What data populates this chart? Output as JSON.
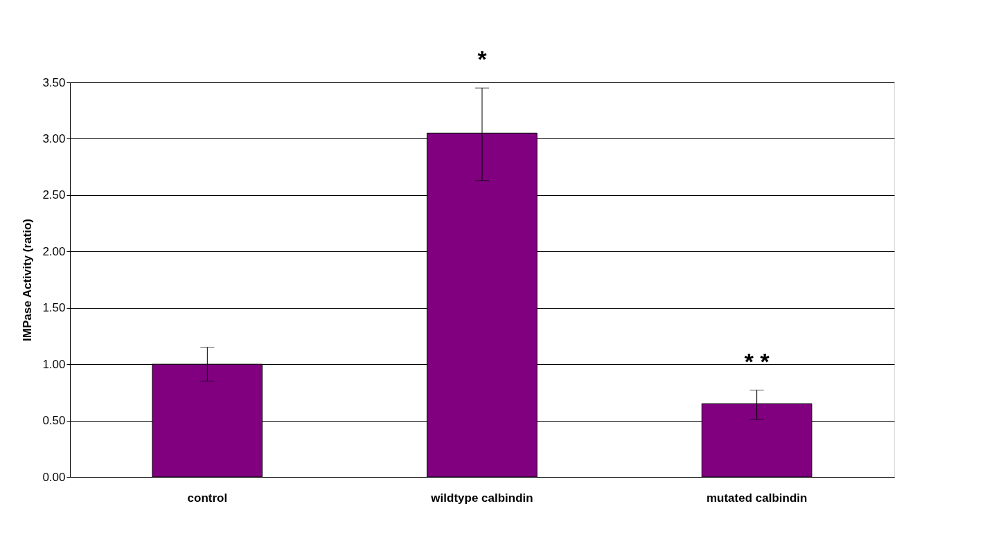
{
  "chart_data": {
    "type": "bar",
    "ylabel": "IMPase Activity (ratio)",
    "categories": [
      "control",
      "wildtype calbindin",
      "mutated calbindin"
    ],
    "values": [
      1.0,
      3.05,
      0.65
    ],
    "errors": [
      [
        0.85,
        1.15
      ],
      [
        2.63,
        3.45
      ],
      [
        0.51,
        0.77
      ]
    ],
    "color": "#800080",
    "ylim": [
      0,
      3.5
    ],
    "yticks": [
      {
        "value": 0,
        "label": "0.00"
      },
      {
        "value": 0.5,
        "label": "0.50"
      },
      {
        "value": 1,
        "label": "1.00"
      },
      {
        "value": 1.5,
        "label": "1.50"
      },
      {
        "value": 2,
        "label": "2.00"
      },
      {
        "value": 2.5,
        "label": "2.50"
      },
      {
        "value": 3,
        "label": "3.00"
      },
      {
        "value": 3.5,
        "label": "3.50"
      }
    ],
    "grid": "y",
    "annotations": [
      {
        "text": "*",
        "x": "wildtype calbindin",
        "y": 3.45
      },
      {
        "text": "* *",
        "x": "mutated calbindin",
        "y": 0.77
      }
    ]
  }
}
